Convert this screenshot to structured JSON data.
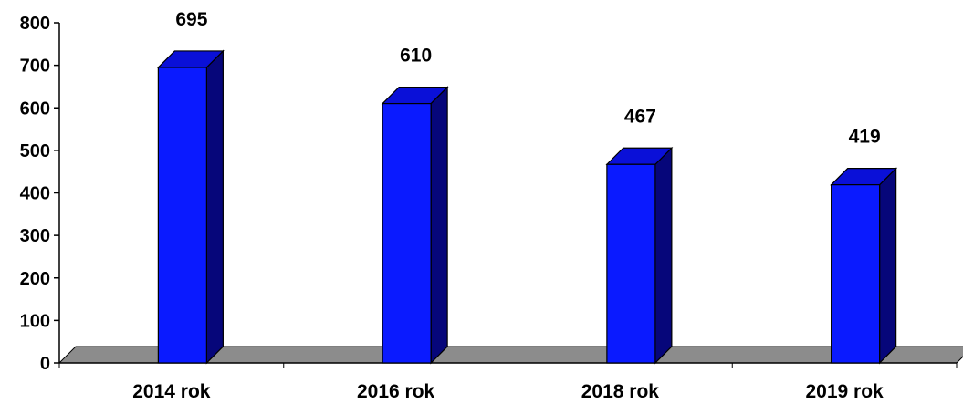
{
  "chart_data": {
    "type": "bar",
    "categories": [
      "2014 rok",
      "2016 rok",
      "2018 rok",
      "2019 rok"
    ],
    "values": [
      695,
      610,
      467,
      419
    ],
    "data_labels": [
      "695",
      "610",
      "467",
      "419"
    ],
    "title": "",
    "xlabel": "",
    "ylabel": "",
    "ylim": [
      0,
      800
    ],
    "yticks": [
      0,
      100,
      200,
      300,
      400,
      500,
      600,
      700,
      800
    ],
    "ytick_labels": [
      "0",
      "100",
      "200",
      "300",
      "400",
      "500",
      "600",
      "700",
      "800"
    ],
    "grid": false,
    "legend": "none",
    "style": "3d-column",
    "colors": {
      "bar_front": "#0a1aff",
      "bar_side": "#06067a",
      "bar_top": "#0a10d8",
      "floor": "#8c8c8c",
      "outline": "#000000"
    }
  }
}
